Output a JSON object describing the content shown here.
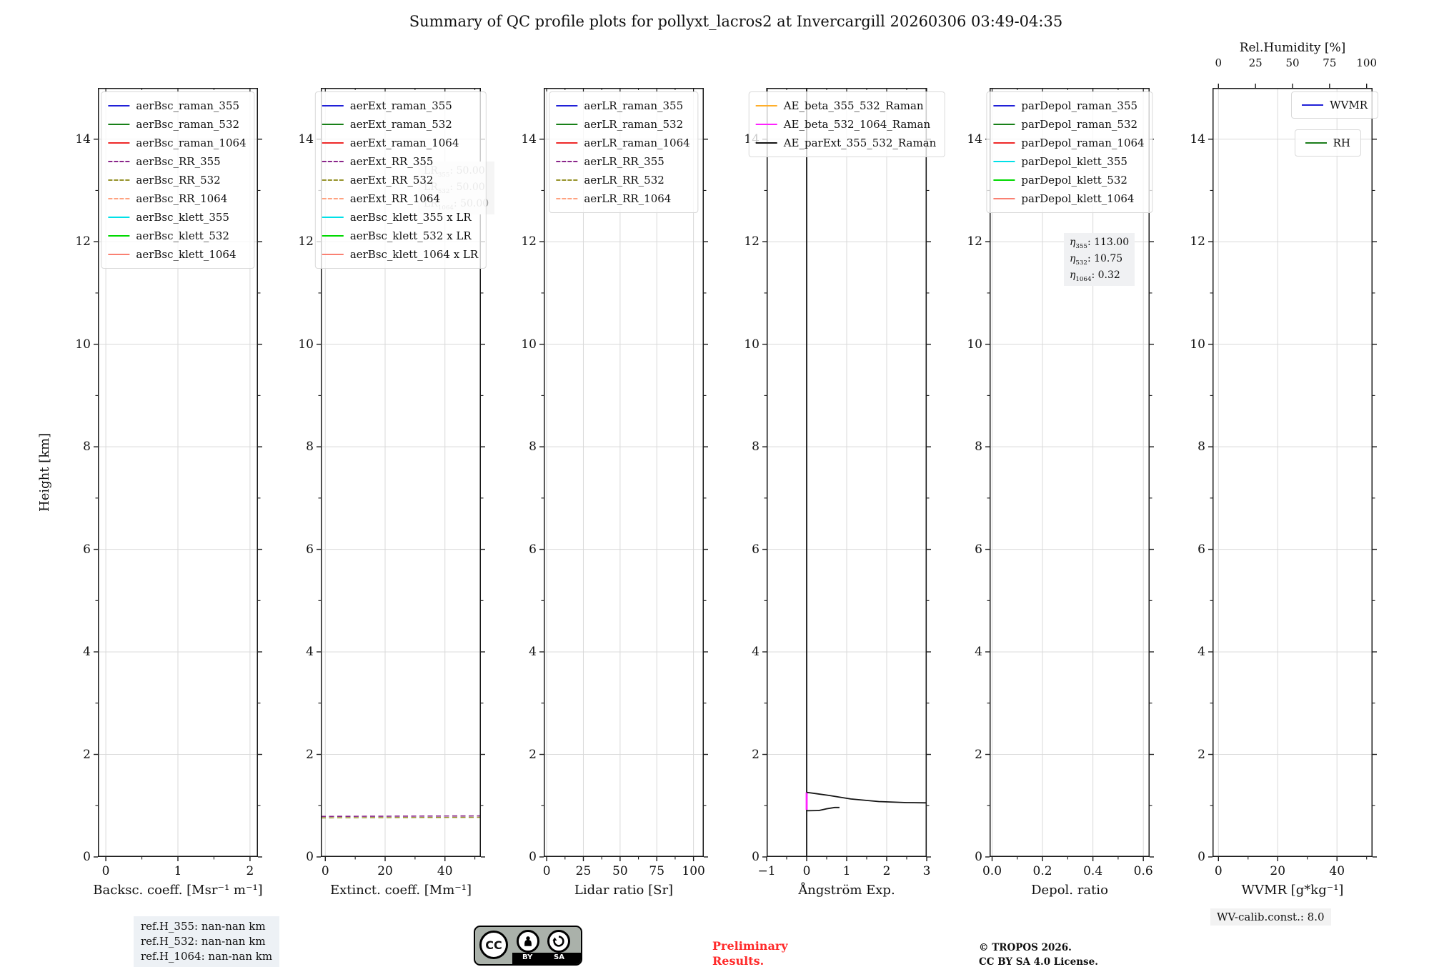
{
  "title": "Summary of QC profile plots for pollyxt_lacros2 at Invercargill 20260306 03:49-04:35",
  "chart_data": {
    "type": "line",
    "ylabel": "Height [km]",
    "ylim": [
      0,
      15
    ],
    "yticks": [
      0,
      2,
      4,
      6,
      8,
      10,
      12,
      14
    ],
    "yminor": [
      1,
      3,
      5,
      7,
      9,
      11,
      13
    ],
    "grid": true,
    "panels": [
      {
        "name": "backscatter-coefficient",
        "xlabel": "Backsc. coeff. [Msr⁻¹ m⁻¹]",
        "xlim": [
          -0.11,
          2.11
        ],
        "xticks": [
          0,
          1,
          2
        ],
        "xtick_labels": [
          "0",
          "1",
          "2"
        ],
        "xminor": [
          0.5,
          1.5
        ],
        "legend": [
          {
            "label": "aerBsc_raman_355",
            "color": "#2020d8",
            "dash": false
          },
          {
            "label": "aerBsc_raman_532",
            "color": "#188018",
            "dash": false
          },
          {
            "label": "aerBsc_raman_1064",
            "color": "#ee2929",
            "dash": false
          },
          {
            "label": "aerBsc_RR_355",
            "color": "#8a258a",
            "dash": true
          },
          {
            "label": "aerBsc_RR_532",
            "color": "#97932b",
            "dash": true
          },
          {
            "label": "aerBsc_RR_1064",
            "color": "#ffa280",
            "dash": true
          },
          {
            "label": "aerBsc_klett_355",
            "color": "#00e0e8",
            "dash": false
          },
          {
            "label": "aerBsc_klett_532",
            "color": "#00d900",
            "dash": false
          },
          {
            "label": "aerBsc_klett_1064",
            "color": "#fa8072",
            "dash": false
          }
        ],
        "series": []
      },
      {
        "name": "extinction-coefficient",
        "xlabel": "Extinct. coeff. [Mm⁻¹]",
        "xlim": [
          -1.5,
          52
        ],
        "xticks": [
          0,
          20,
          40
        ],
        "xtick_labels": [
          "0",
          "20",
          "40"
        ],
        "xminor": [
          10,
          30,
          50
        ],
        "legend": [
          {
            "label": "aerExt_raman_355",
            "color": "#2020d8",
            "dash": false
          },
          {
            "label": "aerExt_raman_532",
            "color": "#188018",
            "dash": false
          },
          {
            "label": "aerExt_raman_1064",
            "color": "#ee2929",
            "dash": false
          },
          {
            "label": "aerExt_RR_355",
            "color": "#8a258a",
            "dash": true
          },
          {
            "label": "aerExt_RR_532",
            "color": "#97932b",
            "dash": true
          },
          {
            "label": "aerExt_RR_1064",
            "color": "#ffa280",
            "dash": true
          },
          {
            "label": "aerBsc_klett_355 x LR",
            "color": "#00e0e8",
            "dash": false
          },
          {
            "label": "aerBsc_klett_532 x LR",
            "color": "#00d900",
            "dash": false
          },
          {
            "label": "aerBsc_klett_1064 x LR",
            "color": "#fa8072",
            "dash": false
          }
        ],
        "series": [
          {
            "name": "aerExt_RR_355",
            "color": "#8a258a",
            "dash": true,
            "width": 1.6,
            "points": [
              [
                -1.5,
                0.79
              ],
              [
                52,
                0.8
              ]
            ]
          },
          {
            "name": "aerExt_RR_532",
            "color": "#97932b",
            "dash": true,
            "width": 1.6,
            "points": [
              [
                -1.5,
                0.762
              ],
              [
                52,
                0.772
              ]
            ]
          }
        ],
        "annotation": {
          "lines": [
            {
              "pre": "LR",
              "sub": "355",
              "post": ": 50.00"
            },
            {
              "pre": "LR",
              "sub": "532",
              "post": ": 50.00"
            },
            {
              "pre": "LR",
              "sub": "1064",
              "post": ": 50.00"
            }
          ]
        }
      },
      {
        "name": "lidar-ratio",
        "xlabel": "Lidar ratio [Sr]",
        "xlim": [
          -2,
          107
        ],
        "xticks": [
          0,
          25,
          50,
          75,
          100
        ],
        "xtick_labels": [
          "0",
          "25",
          "50",
          "75",
          "100"
        ],
        "xminor": [
          12.5,
          37.5,
          62.5,
          87.5
        ],
        "legend": [
          {
            "label": "aerLR_raman_355",
            "color": "#2020d8",
            "dash": false
          },
          {
            "label": "aerLR_raman_532",
            "color": "#188018",
            "dash": false
          },
          {
            "label": "aerLR_raman_1064",
            "color": "#ee2929",
            "dash": false
          },
          {
            "label": "aerLR_RR_355",
            "color": "#8a258a",
            "dash": true
          },
          {
            "label": "aerLR_RR_532",
            "color": "#97932b",
            "dash": true
          },
          {
            "label": "aerLR_RR_1064",
            "color": "#ffa280",
            "dash": true
          }
        ],
        "series": []
      },
      {
        "name": "angstrom-exponent",
        "xlabel": "Ångström Exp.",
        "xlim": [
          -1,
          3
        ],
        "xticks": [
          -1,
          0,
          1,
          2,
          3
        ],
        "xtick_labels": [
          "−1",
          "0",
          "1",
          "2",
          "3"
        ],
        "xminor": [
          -0.5,
          0.5,
          1.5,
          2.5
        ],
        "legend": [
          {
            "label": "AE_beta_355_532_Raman",
            "color": "#ffae2a",
            "dash": false
          },
          {
            "label": "AE_beta_532_1064_Raman",
            "color": "#ff22ff",
            "dash": false
          },
          {
            "label": "AE_parExt_355_532_Raman",
            "color": "#141414",
            "dash": false
          }
        ],
        "series": [
          {
            "name": "AE_parExt_355_532_Raman",
            "color": "#141414",
            "dash": false,
            "width": 1.8,
            "points": [
              [
                0,
                0
              ],
              [
                0,
                15
              ]
            ]
          },
          {
            "name": "AE_beta_532_1064_Raman",
            "color": "#ff22ff",
            "dash": false,
            "width": 2.8,
            "points": [
              [
                0,
                0.92
              ],
              [
                0,
                1.26
              ]
            ]
          },
          {
            "name": "AE_beta_355_532_Raman_profile",
            "color": "#141414",
            "dash": false,
            "width": 1.8,
            "points": [
              [
                0,
                1.26
              ],
              [
                0.55,
                1.2
              ],
              [
                1.1,
                1.13
              ],
              [
                1.8,
                1.08
              ],
              [
                2.5,
                1.06
              ],
              [
                3,
                1.055
              ]
            ]
          },
          {
            "name": "AE_parExt_355_532_Raman_profile",
            "color": "#141414",
            "dash": false,
            "width": 1.8,
            "points": [
              [
                0,
                0.9
              ],
              [
                0.3,
                0.905
              ],
              [
                0.5,
                0.94
              ],
              [
                0.7,
                0.965
              ],
              [
                0.82,
                0.965
              ]
            ]
          }
        ]
      },
      {
        "name": "depolarization-ratio",
        "xlabel": "Depol. ratio",
        "xlim": [
          -0.01,
          0.625
        ],
        "xticks": [
          0,
          0.2,
          0.4,
          0.6
        ],
        "xtick_labels": [
          "0.0",
          "0.2",
          "0.4",
          "0.6"
        ],
        "xminor": [
          0.1,
          0.3,
          0.5
        ],
        "legend": [
          {
            "label": "parDepol_raman_355",
            "color": "#2020d8",
            "dash": false
          },
          {
            "label": "parDepol_raman_532",
            "color": "#188018",
            "dash": false
          },
          {
            "label": "parDepol_raman_1064",
            "color": "#ee2929",
            "dash": false
          },
          {
            "label": "parDepol_klett_355",
            "color": "#00e0e8",
            "dash": false
          },
          {
            "label": "parDepol_klett_532",
            "color": "#00d900",
            "dash": false
          },
          {
            "label": "parDepol_klett_1064",
            "color": "#fa8072",
            "dash": false
          }
        ],
        "series": [],
        "annotation": {
          "lines": [
            {
              "pre": "η",
              "italic": true,
              "sub": "355",
              "post": ": 113.00"
            },
            {
              "pre": "η",
              "italic": true,
              "sub": "532",
              "post": ": 10.75"
            },
            {
              "pre": "η",
              "italic": true,
              "sub": "1064",
              "post": ": 0.32"
            }
          ]
        }
      },
      {
        "name": "water-vapor-mixing-ratio",
        "xlabel": "WVMR [g*kg⁻¹]",
        "xlim": [
          -2,
          52
        ],
        "xticks": [
          0,
          20,
          40
        ],
        "xtick_labels": [
          "0",
          "20",
          "40"
        ],
        "xminor": [
          10,
          30,
          50
        ],
        "top_axis": {
          "label": "Rel.Humidity [%]",
          "xlim": [
            -4,
            104
          ],
          "xticks": [
            0,
            25,
            50,
            75,
            100
          ],
          "xtick_labels": [
            "0",
            "25",
            "50",
            "75",
            "100"
          ]
        },
        "legend_boxes": [
          [
            {
              "label": "WVMR",
              "color": "#2020d8",
              "dash": false
            }
          ],
          [
            {
              "label": "RH",
              "color": "#1b7d1b",
              "dash": false
            }
          ]
        ],
        "series": []
      }
    ]
  },
  "footer": {
    "ref_heights": [
      "ref.H_355: nan-nan km",
      "ref.H_532: nan-nan km",
      "ref.H_1064: nan-nan km"
    ],
    "preliminary": [
      "Preliminary",
      "Results."
    ],
    "copyright": [
      "© TROPOS 2026.",
      "CC BY SA 4.0 License."
    ],
    "wv_calib": "WV-calib.const.: 8.0",
    "cc_badge": {
      "cc": "CC",
      "by": "BY",
      "sa": "SA"
    }
  }
}
